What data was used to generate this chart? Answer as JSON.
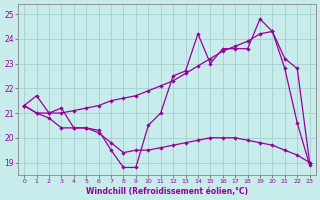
{
  "xlabel": "Windchill (Refroidissement éolien,°C)",
  "bg_color": "#c8ecec",
  "grid_color": "#aad4d4",
  "line_color": "#990099",
  "xlim": [
    -0.5,
    23.5
  ],
  "ylim": [
    18.5,
    25.4
  ],
  "yticks": [
    19,
    20,
    21,
    22,
    23,
    24,
    25
  ],
  "xticks": [
    0,
    1,
    2,
    3,
    4,
    5,
    6,
    7,
    8,
    9,
    10,
    11,
    12,
    13,
    14,
    15,
    16,
    17,
    18,
    19,
    20,
    21,
    22,
    23
  ],
  "line1_x": [
    0,
    1,
    2,
    3,
    4,
    5,
    6,
    7,
    8,
    9,
    10,
    11,
    12,
    13,
    14,
    15,
    16,
    17,
    18,
    19,
    20,
    21,
    22,
    23
  ],
  "line1_y": [
    21.3,
    21.0,
    21.0,
    21.0,
    21.1,
    21.2,
    21.3,
    21.5,
    21.6,
    21.7,
    21.9,
    22.1,
    22.3,
    22.6,
    22.9,
    23.2,
    23.5,
    23.7,
    23.9,
    24.2,
    24.3,
    23.2,
    22.8,
    19.0
  ],
  "line2_x": [
    0,
    1,
    2,
    3,
    4,
    5,
    6,
    7,
    8,
    9,
    10,
    11,
    12,
    13,
    14,
    15,
    16,
    17,
    18,
    19,
    20,
    21,
    22,
    23
  ],
  "line2_y": [
    21.3,
    21.7,
    21.0,
    21.2,
    20.4,
    20.4,
    20.3,
    19.5,
    18.8,
    18.8,
    20.5,
    21.0,
    22.5,
    22.7,
    24.2,
    23.0,
    23.6,
    23.6,
    23.6,
    24.8,
    24.3,
    22.8,
    20.6,
    18.9
  ],
  "line3_x": [
    0,
    1,
    2,
    3,
    4,
    5,
    6,
    7,
    8,
    9,
    10,
    11,
    12,
    13,
    14,
    15,
    16,
    17,
    18,
    19,
    20,
    21,
    22,
    23
  ],
  "line3_y": [
    21.3,
    21.0,
    20.8,
    20.4,
    20.4,
    20.4,
    20.2,
    19.8,
    19.4,
    19.5,
    19.5,
    19.6,
    19.7,
    19.8,
    19.9,
    20.0,
    20.0,
    20.0,
    19.9,
    19.8,
    19.7,
    19.5,
    19.3,
    19.0
  ]
}
